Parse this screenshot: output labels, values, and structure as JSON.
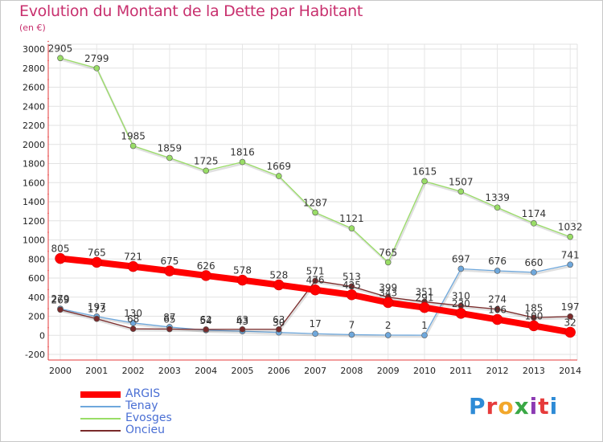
{
  "header": {
    "title": "Evolution du Montant de la Dette par Habitant",
    "subtitle": "(en €)"
  },
  "brand": {
    "logo_text": "Proxiti",
    "letter_colors": [
      "#2e8bd6",
      "#e63b3b",
      "#f2a72b",
      "#3aa845",
      "#8c3ab3",
      "#e63b3b",
      "#2e8bd6"
    ]
  },
  "colors": {
    "ARGIS": "#ff0000",
    "Tenay": "#6fa8dc",
    "Evosges": "#99dd66",
    "Oncieu": "#7a2b2b"
  },
  "chart_data": {
    "type": "line",
    "title": "Evolution du Montant de la Dette par Habitant",
    "ylabel": "(en €)",
    "categories": [
      "2000",
      "2001",
      "2002",
      "2003",
      "2004",
      "2005",
      "2006",
      "2007",
      "2008",
      "2009",
      "2010",
      "2011",
      "2012",
      "2013",
      "2014"
    ],
    "ylim": [
      -200,
      3000
    ],
    "yticks": [
      -200,
      0,
      200,
      400,
      600,
      800,
      1000,
      1200,
      1400,
      1600,
      1800,
      2000,
      2200,
      2400,
      2600,
      2800,
      3000
    ],
    "grid": true,
    "legend": "bottom-left",
    "series": [
      {
        "name": "ARGIS",
        "values": [
          805,
          765,
          721,
          675,
          626,
          578,
          528,
          476,
          425,
          343,
          291,
          230,
          166,
          100,
          32
        ]
      },
      {
        "name": "Tenay",
        "values": [
          279,
          197,
          130,
          87,
          54,
          43,
          30,
          17,
          7,
          2,
          1,
          697,
          676,
          660,
          741
        ]
      },
      {
        "name": "Evosges",
        "values": [
          2905,
          2799,
          1985,
          1859,
          1725,
          1816,
          1669,
          1287,
          1121,
          765,
          1615,
          1507,
          1339,
          1174,
          1032
        ]
      },
      {
        "name": "Oncieu",
        "values": [
          269,
          173,
          68,
          65,
          62,
          63,
          63,
          571,
          513,
          399,
          351,
          310,
          274,
          185,
          197
        ]
      }
    ]
  }
}
